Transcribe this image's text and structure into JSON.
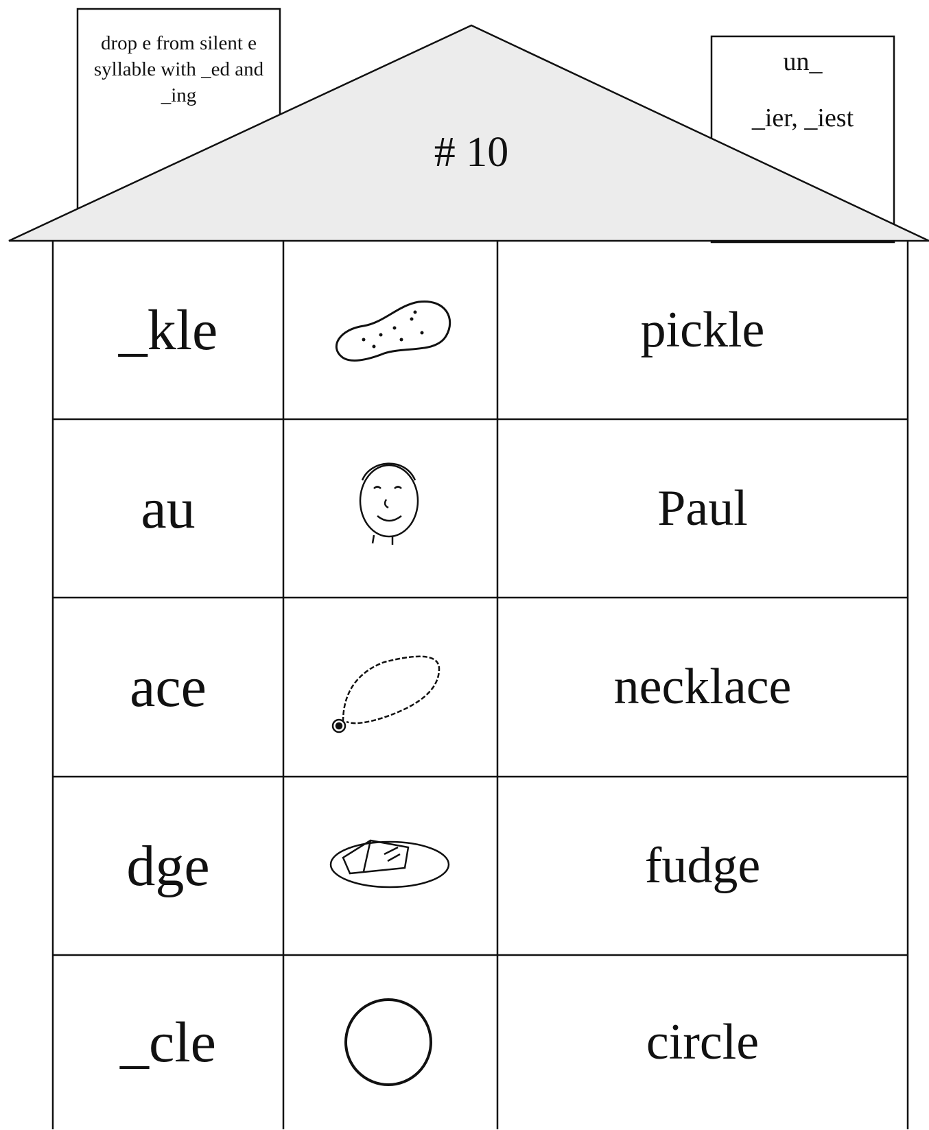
{
  "chimney_left": {
    "text": "drop e from silent e syllable with _ed and _ing"
  },
  "chimney_right": {
    "lines": [
      "un_",
      "_ier, _iest"
    ]
  },
  "roof": {
    "title": "# 10"
  },
  "table": {
    "rows": [
      {
        "pattern": "_kle",
        "word": "pickle"
      },
      {
        "pattern": "au",
        "word": "Paul"
      },
      {
        "pattern": "ace",
        "word": "necklace"
      },
      {
        "pattern": "dge",
        "word": "fudge"
      },
      {
        "pattern": "_cle",
        "word": "circle"
      }
    ]
  }
}
